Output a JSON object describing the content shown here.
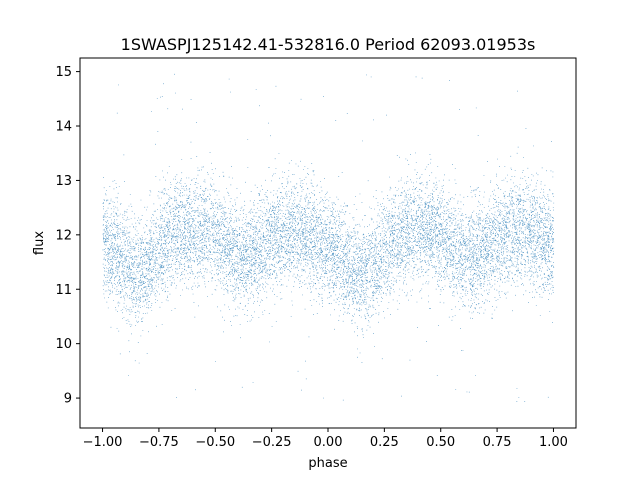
{
  "chart_data": {
    "type": "scatter",
    "title": "1SWASPJ125142.41-532816.0 Period 62093.01953s",
    "xlabel": "phase",
    "ylabel": "flux",
    "xlim": [
      -1.1,
      1.1
    ],
    "ylim": [
      8.45,
      15.25
    ],
    "x_ticks": [
      -1.0,
      -0.75,
      -0.5,
      -0.25,
      0.0,
      0.25,
      0.5,
      0.75,
      1.0
    ],
    "x_tick_labels": [
      "−1.00",
      "−0.75",
      "−0.50",
      "−0.25",
      "0.00",
      "0.25",
      "0.50",
      "0.75",
      "1.00"
    ],
    "y_ticks": [
      9,
      10,
      11,
      12,
      13,
      14,
      15
    ],
    "y_tick_labels": [
      "9",
      "10",
      "11",
      "12",
      "13",
      "14",
      "15"
    ],
    "grid": false,
    "legend": "none",
    "series": [
      {
        "color": "#1f77b4",
        "marker": "dot",
        "phase_range": [
          -1.0,
          1.0
        ],
        "profile": {
          "phase": [
            -1.0,
            -0.95,
            -0.9,
            -0.85,
            -0.8,
            -0.75,
            -0.7,
            -0.65,
            -0.6,
            -0.55,
            -0.5,
            -0.45,
            -0.4,
            -0.35,
            -0.3,
            -0.25,
            -0.2,
            -0.15,
            -0.1,
            -0.05,
            0.0,
            0.05,
            0.1,
            0.15,
            0.2,
            0.25,
            0.3,
            0.35,
            0.4,
            0.45,
            0.5,
            0.55,
            0.6,
            0.65,
            0.7,
            0.75,
            0.8,
            0.85,
            0.9,
            0.95,
            1.0
          ],
          "median_flux": [
            11.9,
            11.7,
            11.45,
            11.25,
            11.4,
            11.75,
            11.95,
            12.05,
            12.1,
            12.1,
            12.0,
            11.75,
            11.55,
            11.6,
            11.8,
            11.95,
            12.05,
            12.1,
            12.0,
            11.85,
            11.8,
            11.6,
            11.35,
            11.25,
            11.4,
            11.75,
            11.95,
            12.05,
            12.1,
            12.1,
            12.0,
            11.75,
            11.55,
            11.6,
            11.8,
            11.95,
            12.05,
            12.1,
            12.0,
            11.9,
            11.9
          ],
          "scatter_low": [
            11.0,
            10.8,
            10.55,
            10.45,
            10.6,
            10.9,
            11.05,
            11.15,
            11.2,
            11.2,
            11.1,
            10.85,
            10.7,
            10.75,
            10.95,
            11.05,
            11.15,
            11.2,
            11.1,
            10.95,
            10.9,
            10.7,
            10.5,
            10.45,
            10.6,
            10.9,
            11.05,
            11.15,
            11.2,
            11.2,
            11.1,
            10.85,
            10.7,
            10.75,
            10.95,
            11.05,
            11.15,
            11.2,
            11.1,
            11.0,
            11.0
          ],
          "scatter_high": [
            12.95,
            12.75,
            12.5,
            12.3,
            12.45,
            12.8,
            13.0,
            13.1,
            13.15,
            13.15,
            13.05,
            12.8,
            12.6,
            12.65,
            12.85,
            13.0,
            13.1,
            13.15,
            13.05,
            12.9,
            12.85,
            12.65,
            12.4,
            12.3,
            12.45,
            12.8,
            13.0,
            13.1,
            13.15,
            13.15,
            13.05,
            12.8,
            12.6,
            12.65,
            12.85,
            13.0,
            13.1,
            13.15,
            13.05,
            12.95,
            12.95
          ]
        },
        "outlier_range": [
          8.75,
          15.0
        ]
      }
    ]
  }
}
